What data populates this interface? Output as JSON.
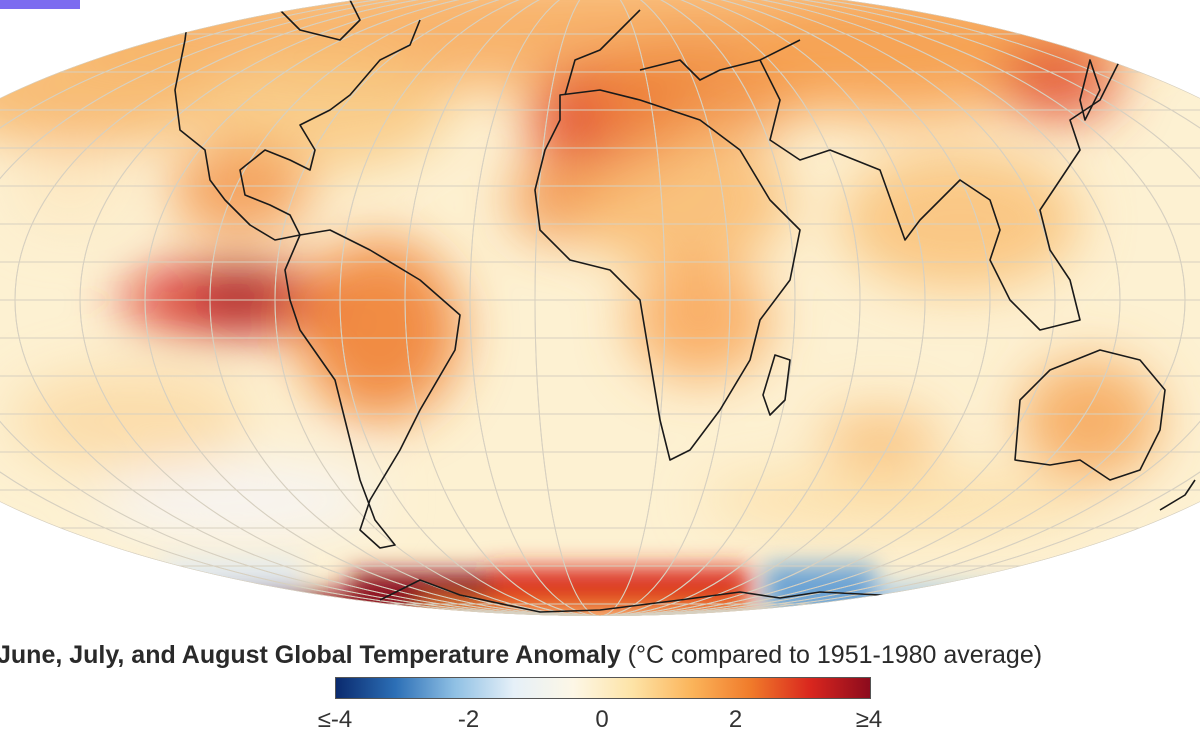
{
  "caption": {
    "bold_text": "June, July, and August Global Temperature Anomaly",
    "rest_text": " (°C compared to 1951-1980 average)"
  },
  "legend": {
    "min_label": "≤-4",
    "max_label": "≥4",
    "ticks": [
      {
        "value": -4,
        "label": "≤-4"
      },
      {
        "value": -2,
        "label": "-2"
      },
      {
        "value": 0,
        "label": "0"
      },
      {
        "value": 2,
        "label": "2"
      },
      {
        "value": 4,
        "label": "≥4"
      }
    ],
    "colors": [
      "#0a2a6e",
      "#2c6fb6",
      "#8fc0e4",
      "#e6f0f8",
      "#fdf7e6",
      "#fde3a6",
      "#fbb45a",
      "#f07a2a",
      "#d9261e",
      "#8c0b1d"
    ]
  },
  "map": {
    "projection": "robinson",
    "background_color": "#fdf1d2",
    "coastline_color": "#1a1a1a",
    "graticule_color": "#d7d0c0"
  },
  "chart_data": {
    "type": "heatmap",
    "title": "June, July, and August Global Temperature Anomaly",
    "unit": "°C compared to 1951-1980 average",
    "range": [
      -4,
      4
    ]
  }
}
